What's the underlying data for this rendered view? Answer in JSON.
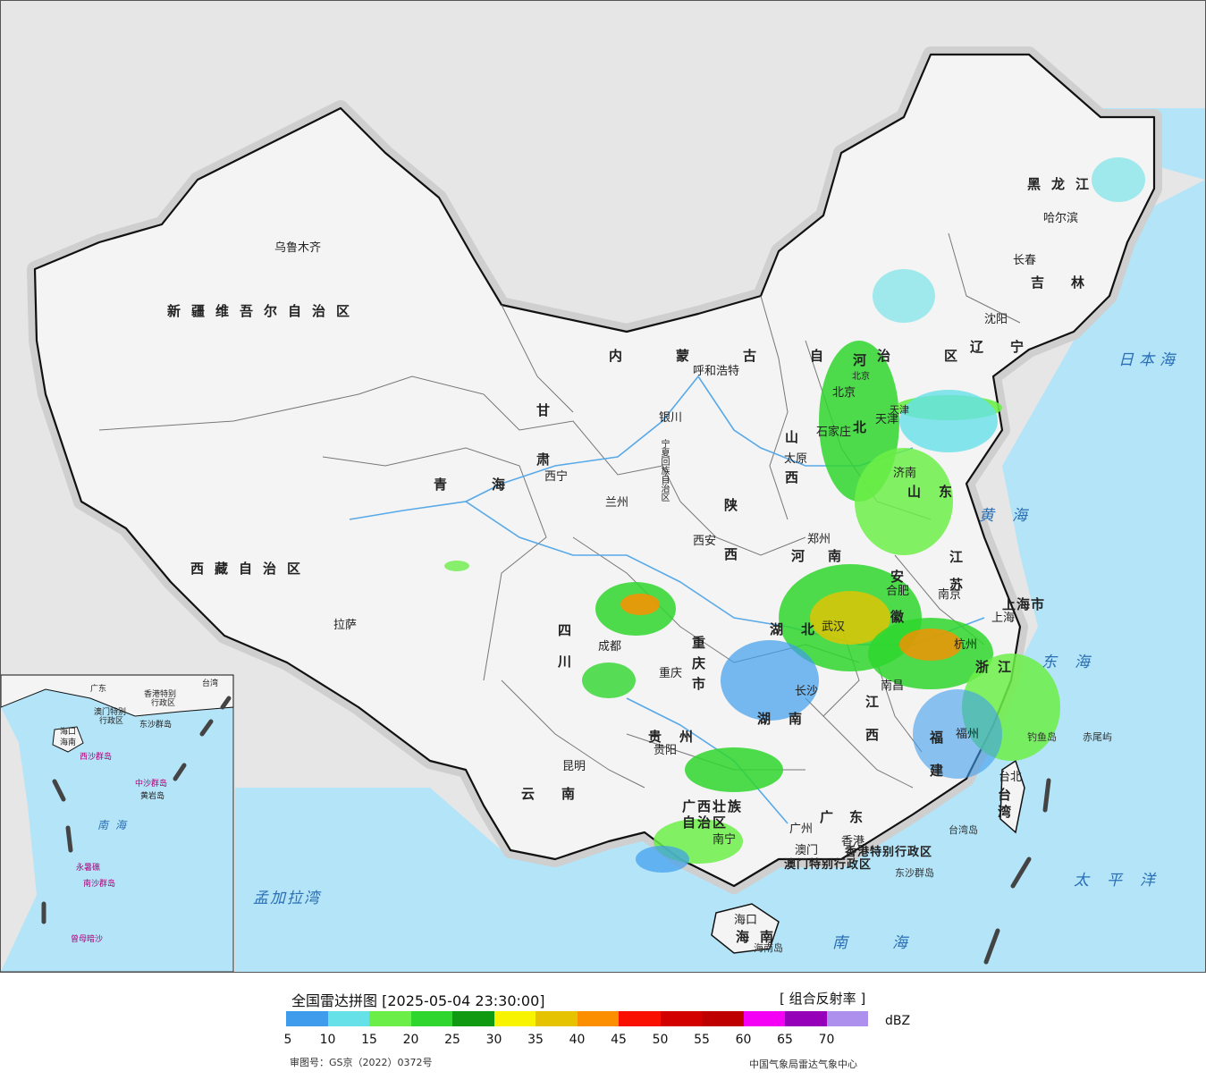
{
  "map": {
    "title": "全国雷达拼图 [2025-05-04 23:30:00]",
    "product": "[ 组合反射率 ]",
    "approval": "审图号：GS京（2022）0372号",
    "source": "中国气象局雷达气象中心",
    "colors": {
      "land": "#f4f4f4",
      "neighbors": "#e6e6e6",
      "sea": "#b3e4f8",
      "border": "#111111",
      "province_border": "#777777",
      "river": "#58a9e8"
    },
    "provinces": [
      {
        "name": "新疆维吾尔自治区"
      },
      {
        "name": "西藏自治区"
      },
      {
        "name": "青海"
      },
      {
        "name": "甘肃"
      },
      {
        "name": "内蒙古自治区"
      },
      {
        "name": "黑龙江"
      },
      {
        "name": "吉林"
      },
      {
        "name": "辽宁"
      },
      {
        "name": "河北"
      },
      {
        "name": "山西"
      },
      {
        "name": "陕西"
      },
      {
        "name": "四川"
      },
      {
        "name": "云南"
      },
      {
        "name": "贵州"
      },
      {
        "name": "重庆市"
      },
      {
        "name": "湖北"
      },
      {
        "name": "湖南"
      },
      {
        "name": "河南"
      },
      {
        "name": "山东"
      },
      {
        "name": "江苏"
      },
      {
        "name": "安徽"
      },
      {
        "name": "浙江"
      },
      {
        "name": "江西"
      },
      {
        "name": "福建"
      },
      {
        "name": "广东"
      },
      {
        "name": "广西壮族自治区"
      },
      {
        "name": "海南"
      },
      {
        "name": "台湾"
      },
      {
        "name": "上海市"
      },
      {
        "name": "宁夏回族自治区"
      },
      {
        "name": "天津"
      },
      {
        "name": "北京"
      },
      {
        "name": "香港特别行政区"
      },
      {
        "name": "澳门特别行政区"
      }
    ],
    "cities": [
      "乌鲁木齐",
      "拉萨",
      "西宁",
      "兰州",
      "银川",
      "呼和浩特",
      "哈尔滨",
      "长春",
      "沈阳",
      "北京",
      "天津",
      "石家庄",
      "太原",
      "济南",
      "郑州",
      "西安",
      "成都",
      "重庆",
      "贵阳",
      "昆明",
      "南宁",
      "广州",
      "澳门",
      "香港",
      "海口",
      "长沙",
      "武汉",
      "合肥",
      "南京",
      "上海",
      "杭州",
      "南昌",
      "福州",
      "台北"
    ],
    "seas": [
      "日本海",
      "黄海",
      "东海",
      "太平洋",
      "南海",
      "孟加拉湾"
    ],
    "islands": [
      "海南岛",
      "台湾岛",
      "东沙群岛",
      "钓鱼岛",
      "赤尾屿"
    ],
    "inset": {
      "labels": [
        "广东",
        "香港特别",
        "行政区",
        "澳门特别",
        "行政区",
        "台湾",
        "海口",
        "海南",
        "西沙群岛",
        "东沙群岛",
        "中沙群岛",
        "黄岩岛",
        "永暑礁",
        "南沙群岛",
        "曾母暗沙",
        "南海"
      ]
    }
  },
  "legend": {
    "unit": "dBZ",
    "ticks": [
      "5",
      "10",
      "15",
      "20",
      "25",
      "30",
      "35",
      "40",
      "45",
      "50",
      "55",
      "60",
      "65",
      "70"
    ],
    "colors": [
      "#3f9ced",
      "#66e1e8",
      "#6cee48",
      "#2fd62e",
      "#109a12",
      "#f8f300",
      "#e6c300",
      "#fb8f00",
      "#f91000",
      "#d30000",
      "#be0000",
      "#f400f4",
      "#9600b8",
      "#ad90ee"
    ]
  }
}
